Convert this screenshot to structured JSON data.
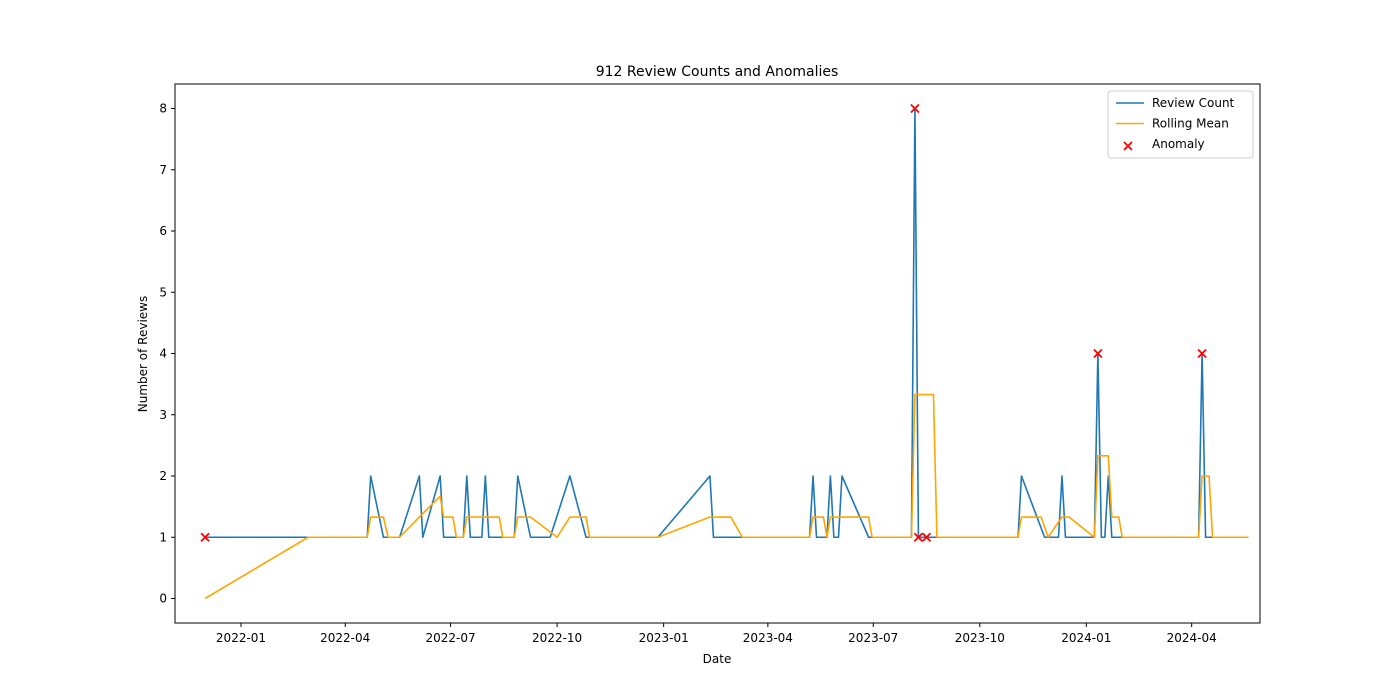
{
  "chart_data": {
    "type": "line",
    "title": "912 Review Counts and Anomalies",
    "xlabel": "Date",
    "ylabel": "Number of Reviews",
    "xlim": [
      "2021-11-05",
      "2024-05-30"
    ],
    "ylim": [
      -0.4,
      8.4
    ],
    "x_ticks": [
      "2022-01",
      "2022-04",
      "2022-07",
      "2022-10",
      "2023-01",
      "2023-04",
      "2023-07",
      "2023-10",
      "2024-01",
      "2024-04"
    ],
    "y_ticks": [
      0,
      1,
      2,
      3,
      4,
      5,
      6,
      7,
      8
    ],
    "grid": false,
    "legend_position": "top-right",
    "series": [
      {
        "name": "Review Count",
        "color": "#1f77b4",
        "style": "line",
        "points": [
          [
            "2021-12-01",
            1
          ],
          [
            "2022-02-28",
            1
          ],
          [
            "2022-04-20",
            1
          ],
          [
            "2022-04-23",
            2
          ],
          [
            "2022-05-04",
            1
          ],
          [
            "2022-05-18",
            1
          ],
          [
            "2022-06-04",
            2
          ],
          [
            "2022-06-07",
            1
          ],
          [
            "2022-06-22",
            2
          ],
          [
            "2022-06-25",
            1
          ],
          [
            "2022-07-12",
            1
          ],
          [
            "2022-07-15",
            2
          ],
          [
            "2022-07-18",
            1
          ],
          [
            "2022-07-28",
            1
          ],
          [
            "2022-07-31",
            2
          ],
          [
            "2022-08-03",
            1
          ],
          [
            "2022-08-25",
            1
          ],
          [
            "2022-08-28",
            2
          ],
          [
            "2022-09-08",
            1
          ],
          [
            "2022-09-25",
            1
          ],
          [
            "2022-10-12",
            2
          ],
          [
            "2022-10-26",
            1
          ],
          [
            "2022-12-27",
            1
          ],
          [
            "2023-02-10",
            2
          ],
          [
            "2023-02-13",
            1
          ],
          [
            "2023-05-07",
            1
          ],
          [
            "2023-05-10",
            2
          ],
          [
            "2023-05-13",
            1
          ],
          [
            "2023-05-22",
            1
          ],
          [
            "2023-05-25",
            2
          ],
          [
            "2023-05-28",
            1
          ],
          [
            "2023-06-01",
            1
          ],
          [
            "2023-06-04",
            2
          ],
          [
            "2023-06-27",
            1
          ],
          [
            "2023-08-03",
            1
          ],
          [
            "2023-08-06",
            8
          ],
          [
            "2023-08-09",
            1
          ],
          [
            "2023-08-16",
            1
          ],
          [
            "2023-11-03",
            1
          ],
          [
            "2023-11-06",
            2
          ],
          [
            "2023-11-26",
            1
          ],
          [
            "2023-12-08",
            1
          ],
          [
            "2023-12-11",
            2
          ],
          [
            "2023-12-14",
            1
          ],
          [
            "2024-01-08",
            1
          ],
          [
            "2024-01-11",
            4
          ],
          [
            "2024-01-14",
            1
          ],
          [
            "2024-01-17",
            1
          ],
          [
            "2024-01-20",
            2
          ],
          [
            "2024-01-23",
            1
          ],
          [
            "2024-04-07",
            1
          ],
          [
            "2024-04-10",
            4
          ],
          [
            "2024-04-13",
            1
          ],
          [
            "2024-05-20",
            1
          ]
        ]
      },
      {
        "name": "Rolling Mean",
        "color": "#ffa500",
        "style": "line",
        "points": [
          [
            "2021-12-01",
            0
          ],
          [
            "2022-02-28",
            1
          ],
          [
            "2022-04-20",
            1
          ],
          [
            "2022-04-23",
            1.33
          ],
          [
            "2022-05-04",
            1.33
          ],
          [
            "2022-05-08",
            1
          ],
          [
            "2022-05-18",
            1
          ],
          [
            "2022-06-04",
            1.33
          ],
          [
            "2022-06-22",
            1.67
          ],
          [
            "2022-06-25",
            1.33
          ],
          [
            "2022-07-03",
            1.33
          ],
          [
            "2022-07-06",
            1
          ],
          [
            "2022-07-12",
            1
          ],
          [
            "2022-07-15",
            1.33
          ],
          [
            "2022-08-12",
            1.33
          ],
          [
            "2022-08-15",
            1
          ],
          [
            "2022-08-25",
            1
          ],
          [
            "2022-08-28",
            1.33
          ],
          [
            "2022-09-08",
            1.33
          ],
          [
            "2022-10-01",
            1
          ],
          [
            "2022-10-12",
            1.33
          ],
          [
            "2022-10-26",
            1.33
          ],
          [
            "2022-10-29",
            1
          ],
          [
            "2022-12-27",
            1
          ],
          [
            "2023-02-10",
            1.33
          ],
          [
            "2023-02-28",
            1.33
          ],
          [
            "2023-03-10",
            1
          ],
          [
            "2023-05-07",
            1
          ],
          [
            "2023-05-10",
            1.33
          ],
          [
            "2023-05-19",
            1.33
          ],
          [
            "2023-05-22",
            1
          ],
          [
            "2023-05-25",
            1.33
          ],
          [
            "2023-06-27",
            1.33
          ],
          [
            "2023-06-30",
            1
          ],
          [
            "2023-08-03",
            1
          ],
          [
            "2023-08-06",
            3.33
          ],
          [
            "2023-08-22",
            3.33
          ],
          [
            "2023-08-25",
            1
          ],
          [
            "2023-11-03",
            1
          ],
          [
            "2023-11-06",
            1.33
          ],
          [
            "2023-11-23",
            1.33
          ],
          [
            "2023-11-29",
            1
          ],
          [
            "2023-12-11",
            1.33
          ],
          [
            "2023-12-17",
            1.33
          ],
          [
            "2024-01-08",
            1
          ],
          [
            "2024-01-11",
            2.33
          ],
          [
            "2024-01-20",
            2.33
          ],
          [
            "2024-01-23",
            1.33
          ],
          [
            "2024-01-29",
            1.33
          ],
          [
            "2024-02-01",
            1
          ],
          [
            "2024-04-07",
            1
          ],
          [
            "2024-04-10",
            2
          ],
          [
            "2024-04-16",
            2
          ],
          [
            "2024-04-19",
            1
          ],
          [
            "2024-05-20",
            1
          ]
        ]
      },
      {
        "name": "Anomaly",
        "color": "#ff0000",
        "style": "scatter",
        "marker": "x",
        "points": [
          [
            "2021-12-01",
            1
          ],
          [
            "2023-08-06",
            8
          ],
          [
            "2023-08-09",
            1
          ],
          [
            "2023-08-16",
            1
          ],
          [
            "2024-01-11",
            4
          ],
          [
            "2024-04-10",
            4
          ]
        ]
      }
    ]
  }
}
